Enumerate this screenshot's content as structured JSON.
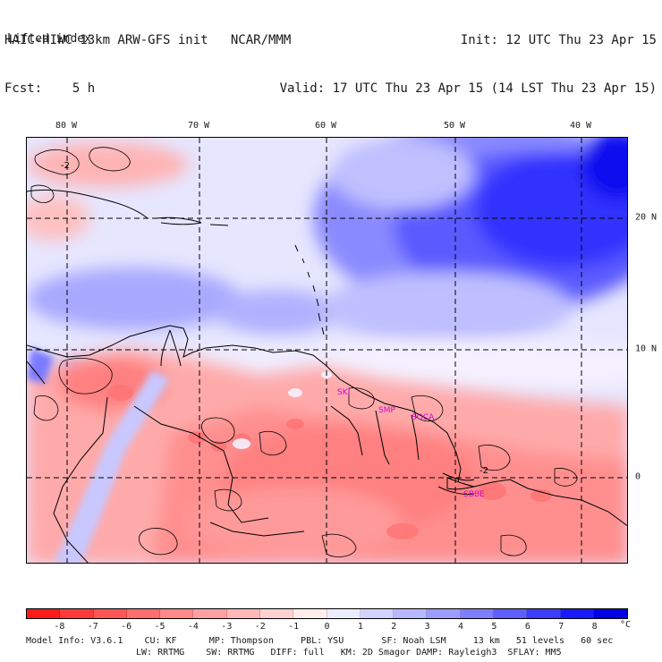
{
  "header": {
    "model_line": "HAIC-HIWC 13km ARW-GFS init   NCAR/MMM",
    "fcst_line": "Fcst:    5 h",
    "variable": "Lifted index",
    "init_line": "Init: 12 UTC Thu 23 Apr 15",
    "valid_line": "Valid: 17 UTC Thu 23 Apr 15 (14 LST Thu 23 Apr 15)"
  },
  "map": {
    "lon_labels": [
      "80 W",
      "70 W",
      "60 W",
      "50 W",
      "40 W"
    ],
    "lat_labels": [
      "20 N",
      "10 N",
      "0"
    ],
    "contour_labels": [
      "-2",
      "-2"
    ],
    "stations": [
      "SKI",
      "SMP",
      "SOCA",
      "SBBE"
    ],
    "station_color": "#d800d8",
    "grid_color": "#000000"
  },
  "colorbar": {
    "unit": "°C",
    "ticks": [
      "-8",
      "-7",
      "-6",
      "-5",
      "-4",
      "-3",
      "-2",
      "-1",
      "0",
      "1",
      "2",
      "3",
      "4",
      "5",
      "6",
      "7",
      "8"
    ],
    "colors": [
      "#ff1a1a",
      "#ff3a3a",
      "#ff5555",
      "#ff6e6e",
      "#ff8888",
      "#ffa0a0",
      "#ffb8b8",
      "#ffd2d2",
      "#ffecec",
      "#ececff",
      "#d2d2ff",
      "#b8b8ff",
      "#9c9cff",
      "#7e7eff",
      "#5e5eff",
      "#3c3cff",
      "#1a1aff",
      "#0000e6"
    ]
  },
  "footer": {
    "line1": "Model Info: V3.6.1    CU: KF      MP: Thompson     PBL: YSU       SF: Noah LSM     13 km   51 levels   60 sec",
    "line2": "LW: RRTMG    SW: RRTMG   DIFF: full   KM: 2D Smagor DAMP: Rayleigh3  SFLAY: MM5"
  }
}
